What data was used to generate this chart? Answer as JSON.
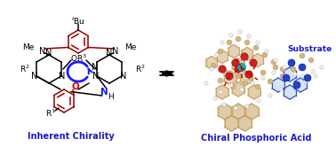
{
  "background_color": "#ffffff",
  "left_label": "Inherent Chirality",
  "right_label": "Chiral Phosphoric Acid",
  "substrate_label": "Substrate",
  "label_color": "#1a1acc",
  "figsize": [
    3.78,
    1.66
  ],
  "dpi": 100,
  "dark_red": "#990000",
  "blue_col": "#1a1aff",
  "red_col": "#cc0000",
  "bond_color": "#c8a86b",
  "tan_color": "#d4b483",
  "tan_edge": "#b8965a"
}
